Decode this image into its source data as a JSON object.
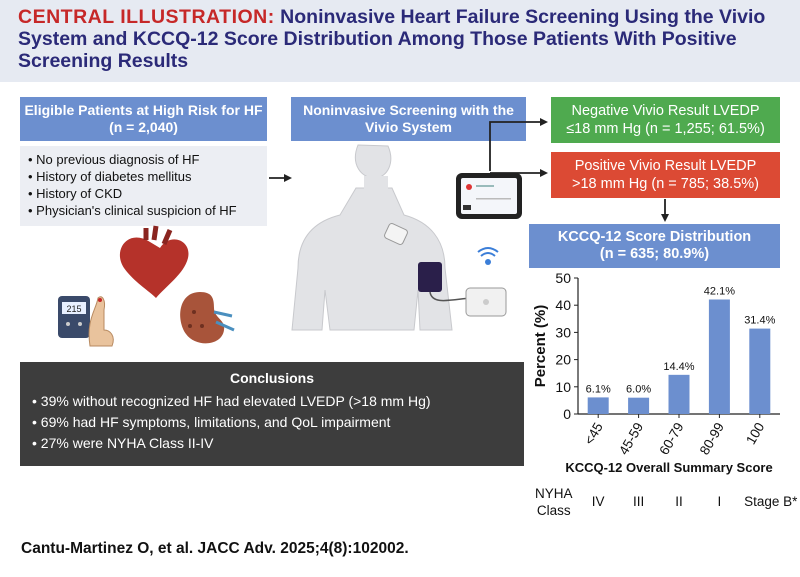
{
  "header": {
    "prefix": "CENTRAL ILLUSTRATION:",
    "title": " Noninvasive Heart Failure Screening Using the Vivio System and KCCQ-12 Score Distribution Among Those Patients With Positive Screening Results"
  },
  "eligible": {
    "title": "Eligible Patients at High Risk for HF",
    "n": "(n = 2,040)",
    "criteria": [
      "No previous diagnosis of HF",
      "History of diabetes mellitus",
      "History of CKD",
      "Physician's clinical suspicion of HF"
    ]
  },
  "screening": {
    "title": "Noninvasive Screening with the",
    "subtitle": "Vivio System"
  },
  "negative": {
    "line1": "Negative Vivio Result LVEDP",
    "line2": "≤18 mm Hg (n = 1,255; 61.5%)"
  },
  "positive": {
    "line1": "Positive Vivio Result LVEDP",
    "line2": ">18 mm Hg (n = 785; 38.5%)"
  },
  "kccq": {
    "title": "KCCQ-12 Score Distribution",
    "n": "(n = 635; 80.9%)"
  },
  "glucose_reading": "215",
  "conclusions": {
    "title": "Conclusions",
    "items": [
      "39% without recognized HF had elevated LVEDP (>18 mm Hg)",
      "69% had HF symptoms, limitations, and QoL impairment",
      "27% were NYHA Class II-IV"
    ]
  },
  "chart_data": {
    "type": "bar",
    "categories": [
      "<45",
      "45-59",
      "60-79",
      "80-99",
      "100"
    ],
    "values": [
      6.1,
      6.0,
      14.4,
      42.1,
      31.4
    ],
    "value_labels": [
      "6.1%",
      "6.0%",
      "14.4%",
      "42.1%",
      "31.4%"
    ],
    "title": "",
    "xlabel": "KCCQ-12 Overall Summary Score",
    "ylabel": "Percent (%)",
    "ylim": [
      0,
      50
    ],
    "yticks": [
      0,
      10,
      20,
      30,
      40,
      50
    ],
    "bar_color": "#6c8fcf",
    "grid": false
  },
  "nyha": {
    "label1": "NYHA",
    "label2": "Class",
    "classes": [
      "IV",
      "III",
      "II",
      "I",
      "Stage B*"
    ]
  },
  "citation": "Cantu-Martinez O, et al. JACC Adv. 2025;4(8):102002.",
  "colors": {
    "accent_red": "#c62828",
    "title_navy": "#2b2a78",
    "blue_box": "#6c8fcf",
    "green_box": "#4faa4f",
    "red_box": "#dc4a34",
    "dark_box": "#3d3d3d"
  }
}
